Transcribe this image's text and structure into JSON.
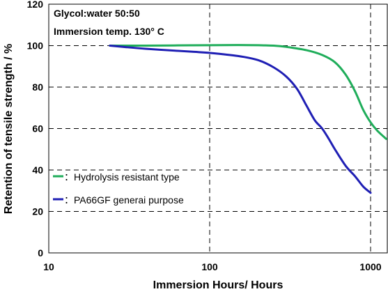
{
  "chart_data": {
    "type": "line",
    "title": "",
    "annotations": [
      "Glycol:water  50:50",
      "Immersion temp. 130°  C"
    ],
    "xlabel": "Immersion Hours/ Hours",
    "ylabel": "Retention of tensile strength / %",
    "x_scale": "log",
    "xlim": [
      10,
      1250
    ],
    "ylim": [
      0,
      120
    ],
    "x_ticks": [
      "10",
      "100",
      "1000"
    ],
    "y_ticks": [
      "0",
      "20",
      "40",
      "60",
      "80",
      "100",
      "120"
    ],
    "grid": "dashed",
    "legend_position": "middle-left",
    "series": [
      {
        "name": "：Hydrolysis resistant type",
        "color": "#1fad5a",
        "x": [
          24,
          30,
          40,
          60,
          100,
          150,
          200,
          250,
          300,
          400,
          500,
          600,
          700,
          800,
          900,
          1000,
          1100,
          1250
        ],
        "y": [
          100,
          100,
          100,
          100.1,
          100.2,
          100.3,
          100.2,
          100,
          99.4,
          97.8,
          95.5,
          92,
          86,
          78,
          69,
          63,
          59,
          55
        ]
      },
      {
        "name": "：PA66GF generai purpose",
        "color": "#1f1fb4",
        "x": [
          24,
          30,
          40,
          60,
          80,
          100,
          150,
          200,
          250,
          300,
          350,
          400,
          450,
          500,
          550,
          600,
          700,
          800,
          900,
          1000
        ],
        "y": [
          100,
          99.3,
          98.5,
          97.6,
          97,
          96.5,
          95,
          93,
          89.5,
          85,
          79,
          71,
          64,
          60,
          55,
          50,
          42,
          37,
          32,
          29
        ]
      }
    ]
  }
}
